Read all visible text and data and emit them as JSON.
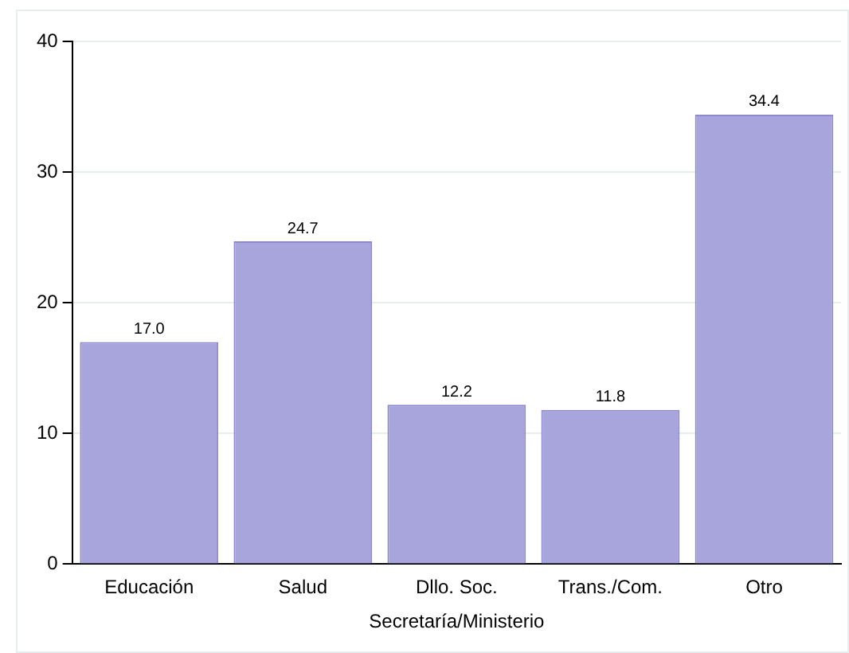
{
  "chart_data": {
    "type": "bar",
    "xlabel": "Secretaría/Ministerio",
    "categories": [
      "Educación",
      "Salud",
      "Dllo. Soc.",
      "Trans./Com.",
      "Otro"
    ],
    "values": [
      17.0,
      24.7,
      12.2,
      11.8,
      34.4
    ],
    "color": "#a8a4dc",
    "ylim": [
      0,
      40
    ],
    "yticks": [
      0,
      10,
      20,
      30,
      40
    ],
    "grid": "y",
    "value_labels": [
      "17.0",
      "24.7",
      "12.2",
      "11.8",
      "34.4"
    ]
  }
}
